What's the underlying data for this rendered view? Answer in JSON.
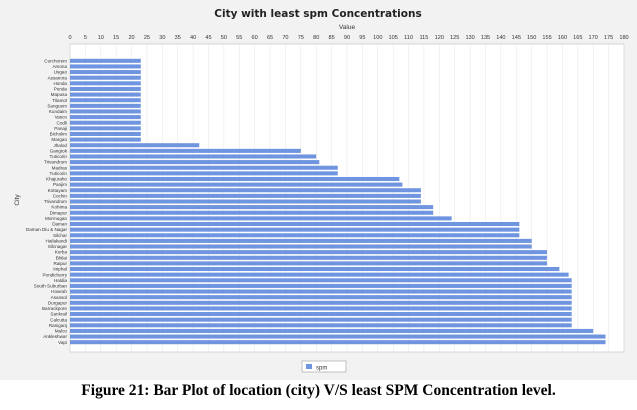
{
  "chart_data": {
    "type": "bar",
    "orientation": "horizontal",
    "title": "City with least spm Concentrations",
    "xlabel": "Value",
    "ylabel": "City",
    "xlim": [
      0,
      180
    ],
    "x_ticks": [
      0,
      5,
      10,
      15,
      20,
      25,
      30,
      35,
      40,
      45,
      50,
      55,
      60,
      65,
      70,
      75,
      80,
      85,
      90,
      95,
      100,
      105,
      110,
      115,
      120,
      125,
      130,
      135,
      140,
      145,
      150,
      155,
      160,
      165,
      170,
      175,
      180
    ],
    "grid": true,
    "legend_position": "bottom-center",
    "series": [
      {
        "name": "spm",
        "color": "#6f94e0",
        "categories": [
          "Curchorem",
          "Amona",
          "Usgao",
          "Assanora",
          "Honda",
          "Ponda",
          "Mapusa",
          "Tilamol",
          "Sanguem",
          "Kundaim",
          "Vasco",
          "Codli",
          "Panaji",
          "Bicholim",
          "Margao",
          "Jhalod",
          "Gangtok",
          "Tuticorin",
          "Trivandrum",
          "Madras",
          "Tuticorin",
          "Khajuraho",
          "Panjim",
          "Kottayam",
          "Cochin",
          "Trivandrum",
          "Kohima",
          "Dimapur",
          "Mormugao",
          "Daman",
          "Daman Diu & Nagar",
          "Silchar",
          "Hailakandi",
          "Silcnagar",
          "Korba",
          "Bhilai",
          "Raipur",
          "Imphal",
          "Pondicherry",
          "Haldia",
          "South Suburban",
          "Howrah",
          "Asansol",
          "Durgapur",
          "Barrackpore",
          "Sankrail",
          "Calcutta",
          "Raniganj",
          "Malco",
          "Ankleshwar",
          "Vapi"
        ],
        "values": [
          23,
          23,
          23,
          23,
          23,
          23,
          23,
          23,
          23,
          23,
          23,
          23,
          23,
          23,
          23,
          42,
          75,
          80,
          81,
          87,
          87,
          107,
          108,
          114,
          114,
          114,
          118,
          118,
          124,
          146,
          146,
          146,
          150,
          150,
          155,
          155,
          155,
          159,
          162,
          163,
          163,
          163,
          163,
          163,
          163,
          163,
          163,
          163,
          170,
          174,
          174
        ]
      }
    ]
  },
  "caption": "Figure 21: Bar Plot of location (city) V/S least SPM Concentration level."
}
